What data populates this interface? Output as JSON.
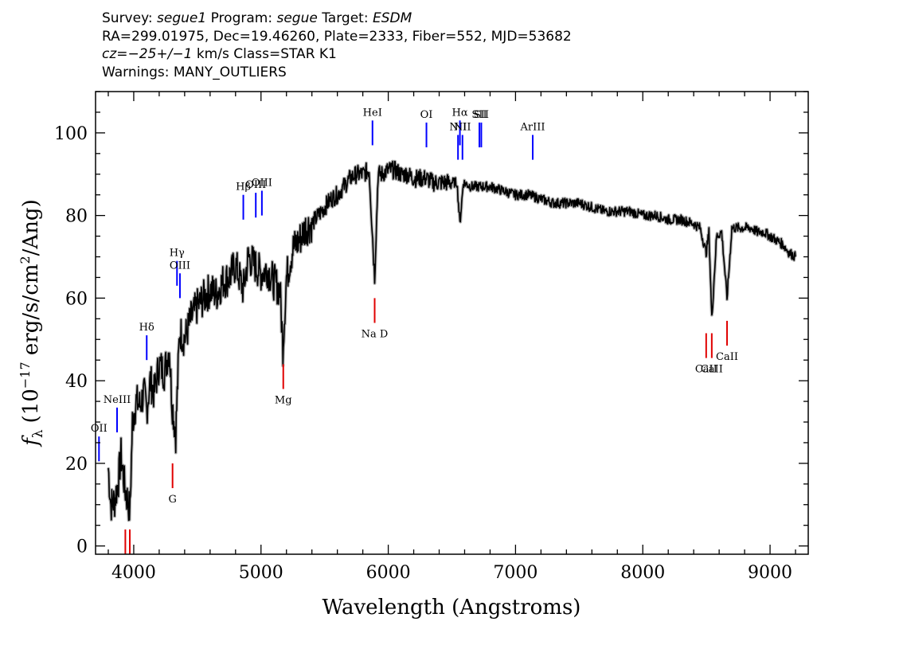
{
  "header": {
    "survey_label": "Survey:",
    "survey": "segue1",
    "program_label": "Program:",
    "program": "segue",
    "target_label": "Target:",
    "target": "ESDM",
    "coords": "RA=299.01975, Dec=19.46260, Plate=2333, Fiber=552, MJD=53682",
    "cz_label": "cz=",
    "cz_value": "−25+/−1",
    "cz_rest": " km/s Class=STAR K1",
    "warnings": "Warnings: MANY_OUTLIERS"
  },
  "colors": {
    "emission": "#0000ff",
    "absorption": "#e00000",
    "spectrum": "#000000",
    "error": "#b0b0b0"
  },
  "chart_data": {
    "type": "line",
    "title": "",
    "xlabel": "Wavelength (Angstroms)",
    "ylabel_prefix": "f",
    "ylabel_sub": "λ",
    "ylabel_main": "(10",
    "ylabel_exp": "−17",
    "ylabel_mid": " erg/s/cm",
    "ylabel_exp2": "2",
    "ylabel_end": "/Ang)",
    "xlim": [
      3700,
      9300
    ],
    "ylim": [
      -2,
      110
    ],
    "xticks": [
      4000,
      5000,
      6000,
      7000,
      8000,
      9000
    ],
    "yticks": [
      0,
      20,
      40,
      60,
      80,
      100
    ],
    "grid": false,
    "series": [
      {
        "x": [
          3800,
          3820,
          3850,
          3880,
          3900,
          3930,
          3960,
          3970,
          3990,
          4020,
          4050,
          4080,
          4102,
          4130,
          4160,
          4200,
          4240,
          4280,
          4300,
          4330,
          4360,
          4400,
          4450,
          4500,
          4550,
          4600,
          4650,
          4700,
          4750,
          4800,
          4861,
          4900,
          4950,
          5000,
          5050,
          5100,
          5150,
          5172,
          5200,
          5250,
          5300,
          5350,
          5400,
          5450,
          5500,
          5550,
          5600,
          5650,
          5700,
          5750,
          5800,
          5850,
          5893,
          5920,
          5950,
          6000,
          6050,
          6100,
          6150,
          6200,
          6250,
          6300,
          6350,
          6400,
          6450,
          6500,
          6540,
          6563,
          6590,
          6650,
          6700,
          6800,
          6900,
          7000,
          7100,
          7200,
          7300,
          7400,
          7500,
          7600,
          7700,
          7800,
          7900,
          8000,
          8100,
          8200,
          8300,
          8400,
          8450,
          8498,
          8520,
          8542,
          8580,
          8620,
          8662,
          8700,
          8750,
          8800,
          8850,
          8900,
          8950,
          9000,
          9050,
          9100,
          9150,
          9200
        ],
        "y": [
          19,
          10,
          11,
          16,
          22,
          14,
          10,
          8,
          30,
          35,
          34,
          37,
          33,
          40,
          37,
          44,
          42,
          48,
          35,
          27,
          52,
          50,
          55,
          58,
          60,
          62,
          61,
          64,
          65,
          68,
          62,
          70,
          68,
          66,
          67,
          64,
          62,
          48,
          65,
          72,
          74,
          77,
          78,
          80,
          82,
          84,
          85,
          87,
          89,
          90,
          90,
          91,
          65,
          90,
          90,
          91,
          91,
          90,
          90,
          89,
          89,
          89,
          88,
          88,
          88,
          88,
          88,
          78,
          88,
          87,
          87,
          87,
          86,
          85,
          85,
          84,
          83,
          83,
          83,
          82,
          81,
          81,
          81,
          80,
          80,
          79,
          79,
          78,
          77,
          71,
          76,
          55,
          75,
          76,
          60,
          77,
          77,
          77,
          77,
          76,
          76,
          75,
          74,
          73,
          71,
          70
        ]
      }
    ],
    "emission_lines": [
      {
        "label": "OII",
        "wave": 3727,
        "y1": 20.5,
        "y2": 26.5
      },
      {
        "label": "NeIII",
        "wave": 3869,
        "y1": 27.5,
        "y2": 33.5
      },
      {
        "label": "Hδ",
        "wave": 4102,
        "y1": 45,
        "y2": 51
      },
      {
        "label": "Hγ",
        "wave": 4340,
        "y1": 63,
        "y2": 69
      },
      {
        "label": "OIII",
        "wave": 4363,
        "y1": 60,
        "y2": 66
      },
      {
        "label": "Hβ",
        "wave": 4861,
        "y1": 79,
        "y2": 85
      },
      {
        "label": "OIII",
        "wave": 4959,
        "y1": 79.5,
        "y2": 85.5
      },
      {
        "label": "OIII",
        "wave": 5007,
        "y1": 80,
        "y2": 86
      },
      {
        "label": "HeI",
        "wave": 5876,
        "y1": 97,
        "y2": 103
      },
      {
        "label": "OI",
        "wave": 6300,
        "y1": 96.5,
        "y2": 102.5
      },
      {
        "label": "NII",
        "wave": 6548,
        "y1": 93.5,
        "y2": 99.5
      },
      {
        "label": "Hα",
        "wave": 6563,
        "y1": 97,
        "y2": 103
      },
      {
        "label": "NII",
        "wave": 6583,
        "y1": 93.5,
        "y2": 99.5
      },
      {
        "label": "SII",
        "wave": 6716,
        "y1": 96.5,
        "y2": 102.5
      },
      {
        "label": "SII",
        "wave": 6731,
        "y1": 96.5,
        "y2": 102.5
      },
      {
        "label": "ArIII",
        "wave": 7135,
        "y1": 93.5,
        "y2": 99.5
      }
    ],
    "absorption_lines": [
      {
        "label": "",
        "wave": 3934,
        "y1": -2,
        "y2": 4
      },
      {
        "label": "",
        "wave": 3969,
        "y1": -2,
        "y2": 4
      },
      {
        "label": "G",
        "wave": 4305,
        "y1": 14,
        "y2": 20
      },
      {
        "label": "Mg",
        "wave": 5175,
        "y1": 38,
        "y2": 44
      },
      {
        "label": "Na D",
        "wave": 5893,
        "y1": 54,
        "y2": 60
      },
      {
        "label": "CaII",
        "wave": 8498,
        "y1": 45.5,
        "y2": 51.5
      },
      {
        "label": "CaII",
        "wave": 8542,
        "y1": 45.5,
        "y2": 51.5
      },
      {
        "label": "CaII",
        "wave": 8662,
        "y1": 48.5,
        "y2": 54.5
      }
    ]
  }
}
